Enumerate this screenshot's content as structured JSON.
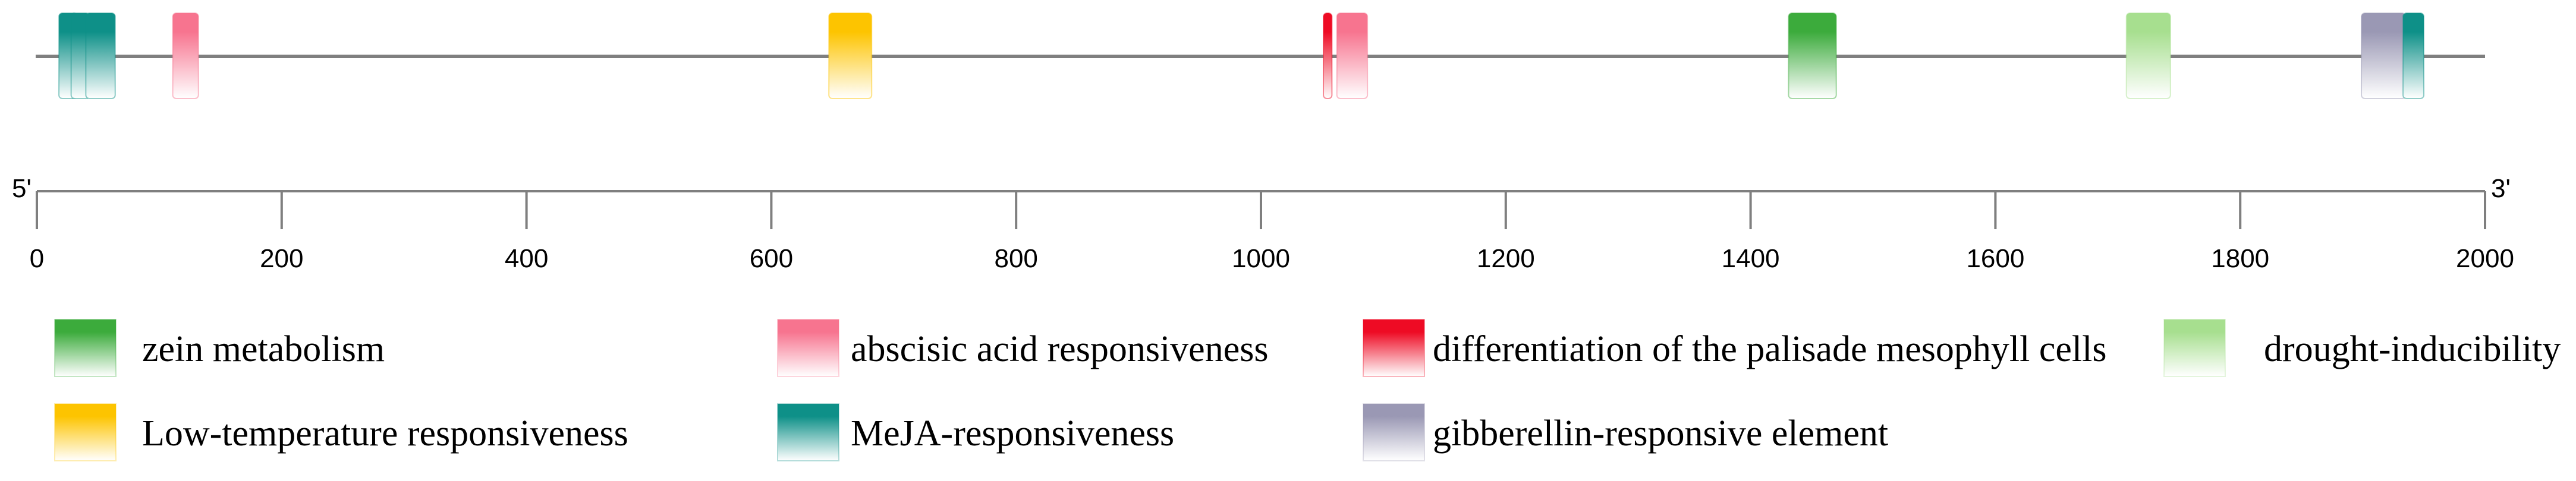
{
  "chart_data": {
    "type": "diagram",
    "sequence": {
      "start_label": "5'",
      "end_label": "3'",
      "xlim": [
        0,
        2000
      ]
    },
    "axis": {
      "ticks": [
        0,
        200,
        400,
        600,
        800,
        1000,
        1200,
        1400,
        1600,
        1800,
        2000
      ],
      "tick_labels": [
        "0",
        "200",
        "400",
        "600",
        "800",
        "1000",
        "1200",
        "1400",
        "1600",
        "1800",
        "2000"
      ]
    },
    "categories": [
      {
        "key": "zein",
        "label": "zein metabolism",
        "color": "#3cab3c"
      },
      {
        "key": "aba",
        "label": "abscisic acid responsiveness",
        "color": "#f7748f"
      },
      {
        "key": "palisade",
        "label": "differentiation of the palisade mesophyll cells",
        "color": "#ee0b24"
      },
      {
        "key": "drought",
        "label": "drought-inducibility",
        "color": "#a7df8f"
      },
      {
        "key": "lowtemp",
        "label": "Low-temperature responsiveness",
        "color": "#fdc400"
      },
      {
        "key": "meja",
        "label": "MeJA-responsiveness",
        "color": "#0e9088"
      },
      {
        "key": "ga",
        "label": "gibberellin-responsive element",
        "color": "#9a98b4"
      }
    ],
    "elements": [
      {
        "category": "meja",
        "start": 18,
        "end": 33
      },
      {
        "category": "meja",
        "start": 28,
        "end": 43
      },
      {
        "category": "meja",
        "start": 40,
        "end": 64
      },
      {
        "category": "aba",
        "start": 111,
        "end": 132
      },
      {
        "category": "lowtemp",
        "start": 647,
        "end": 682
      },
      {
        "category": "palisade",
        "start": 1051,
        "end": 1058
      },
      {
        "category": "aba",
        "start": 1062,
        "end": 1087
      },
      {
        "category": "zein",
        "start": 1431,
        "end": 1470
      },
      {
        "category": "drought",
        "start": 1707,
        "end": 1743
      },
      {
        "category": "ga",
        "start": 1899,
        "end": 1935
      },
      {
        "category": "meja",
        "start": 1933,
        "end": 1950
      }
    ]
  }
}
